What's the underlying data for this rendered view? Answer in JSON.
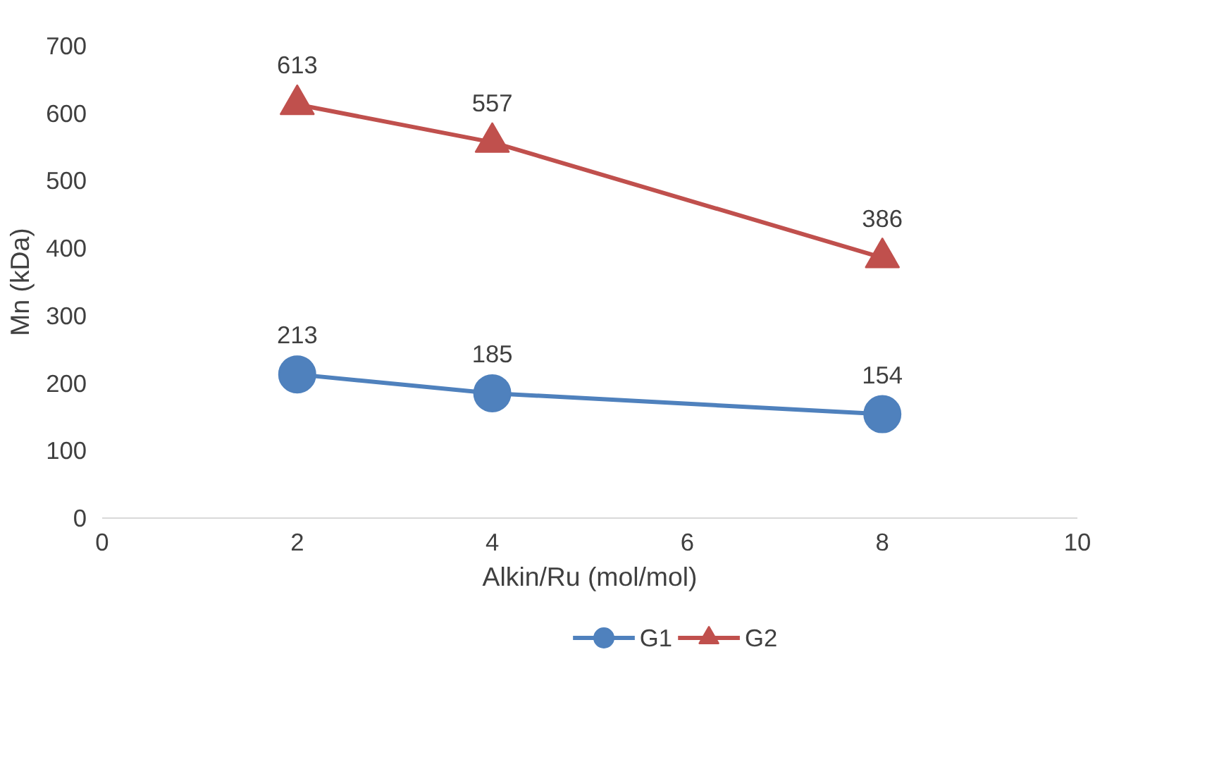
{
  "chart_data": {
    "type": "line",
    "xlabel": "Alkin/Ru (mol/mol)",
    "ylabel": "Mn (kDa)",
    "x": [
      2,
      4,
      8
    ],
    "series": [
      {
        "name": "G1",
        "color": "#4f81bd",
        "marker": "circle",
        "values": [
          213,
          185,
          154
        ]
      },
      {
        "name": "G2",
        "color": "#c0504d",
        "marker": "triangle",
        "values": [
          613,
          557,
          386
        ]
      }
    ],
    "xlim": [
      0,
      10
    ],
    "xticks": [
      0,
      2,
      4,
      6,
      8,
      10
    ],
    "ylim": [
      0,
      700
    ],
    "yticks": [
      0,
      100,
      200,
      300,
      400,
      500,
      600,
      700
    ],
    "grid": false,
    "legend": "bottom",
    "data_labels": true,
    "line_style": "solid"
  }
}
